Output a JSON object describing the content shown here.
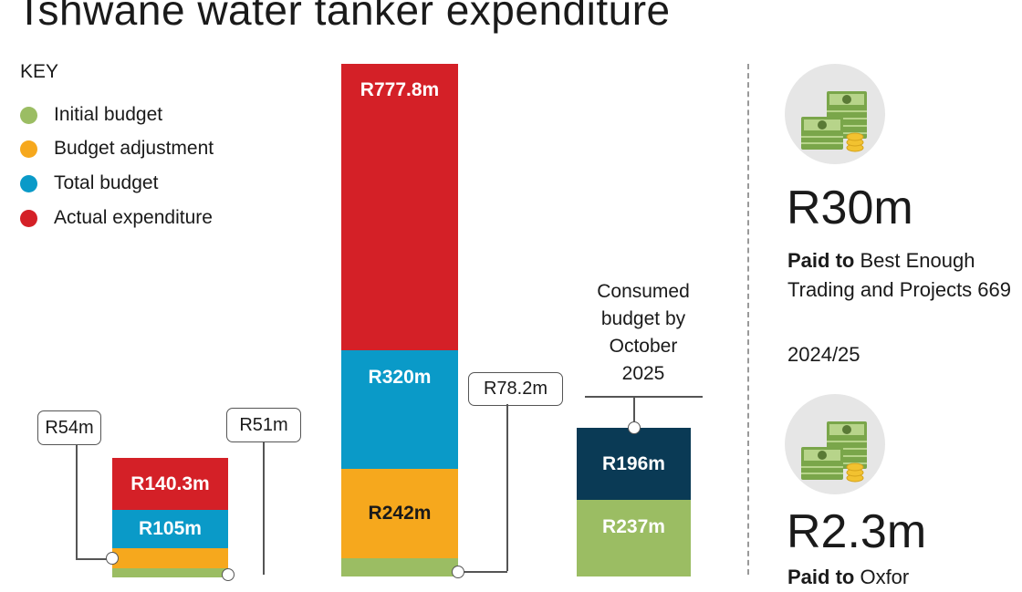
{
  "title": "Tshwane water tanker expenditure",
  "legend": {
    "heading": "KEY",
    "items": [
      {
        "label": "Initial budget",
        "color": "#9bbd63"
      },
      {
        "label": "Budget adjustment",
        "color": "#f6a81d"
      },
      {
        "label": "Total budget",
        "color": "#0a9ac8"
      },
      {
        "label": "Actual expenditure",
        "color": "#d42027"
      }
    ]
  },
  "chart_data": {
    "type": "bar",
    "title": "Tshwane water tanker expenditure",
    "bars": [
      {
        "segments": [
          {
            "series": "Initial budget",
            "value": 51,
            "label": "R51m"
          },
          {
            "series": "Budget adjustment",
            "value": 54,
            "label": "R54m"
          },
          {
            "series": "Total budget",
            "value": 105,
            "label": "R105m"
          },
          {
            "series": "Actual expenditure",
            "value": 140.3,
            "label": "R140.3m"
          }
        ]
      },
      {
        "segments": [
          {
            "series": "Initial budget",
            "value": 78.2,
            "label": "R78.2m"
          },
          {
            "series": "Budget adjustment",
            "value": 242,
            "label": "R242m"
          },
          {
            "series": "Total budget",
            "value": 320,
            "label": "R320m"
          },
          {
            "series": "Actual expenditure",
            "value": 777.8,
            "label": "R777.8m"
          }
        ]
      },
      {
        "segments": [
          {
            "series": "Initial budget",
            "value": 237,
            "label": "R237m"
          },
          {
            "series": "Consumed budget by October 2025",
            "value": 196,
            "label": "R196m",
            "color": "#0a3a55"
          }
        ],
        "annotation": "Consumed budget by October 2025"
      }
    ]
  },
  "annotation_lines": [
    "Consumed",
    "budget by",
    "October",
    "2025"
  ],
  "side": [
    {
      "amount": "R30m",
      "paid_bold": "Paid to",
      "paid_rest": " Best Enough Trading and Projects 669",
      "period": "2024/25"
    },
    {
      "amount": "R2.3m",
      "paid_bold": "Paid to",
      "paid_rest": " Oxfor"
    }
  ]
}
